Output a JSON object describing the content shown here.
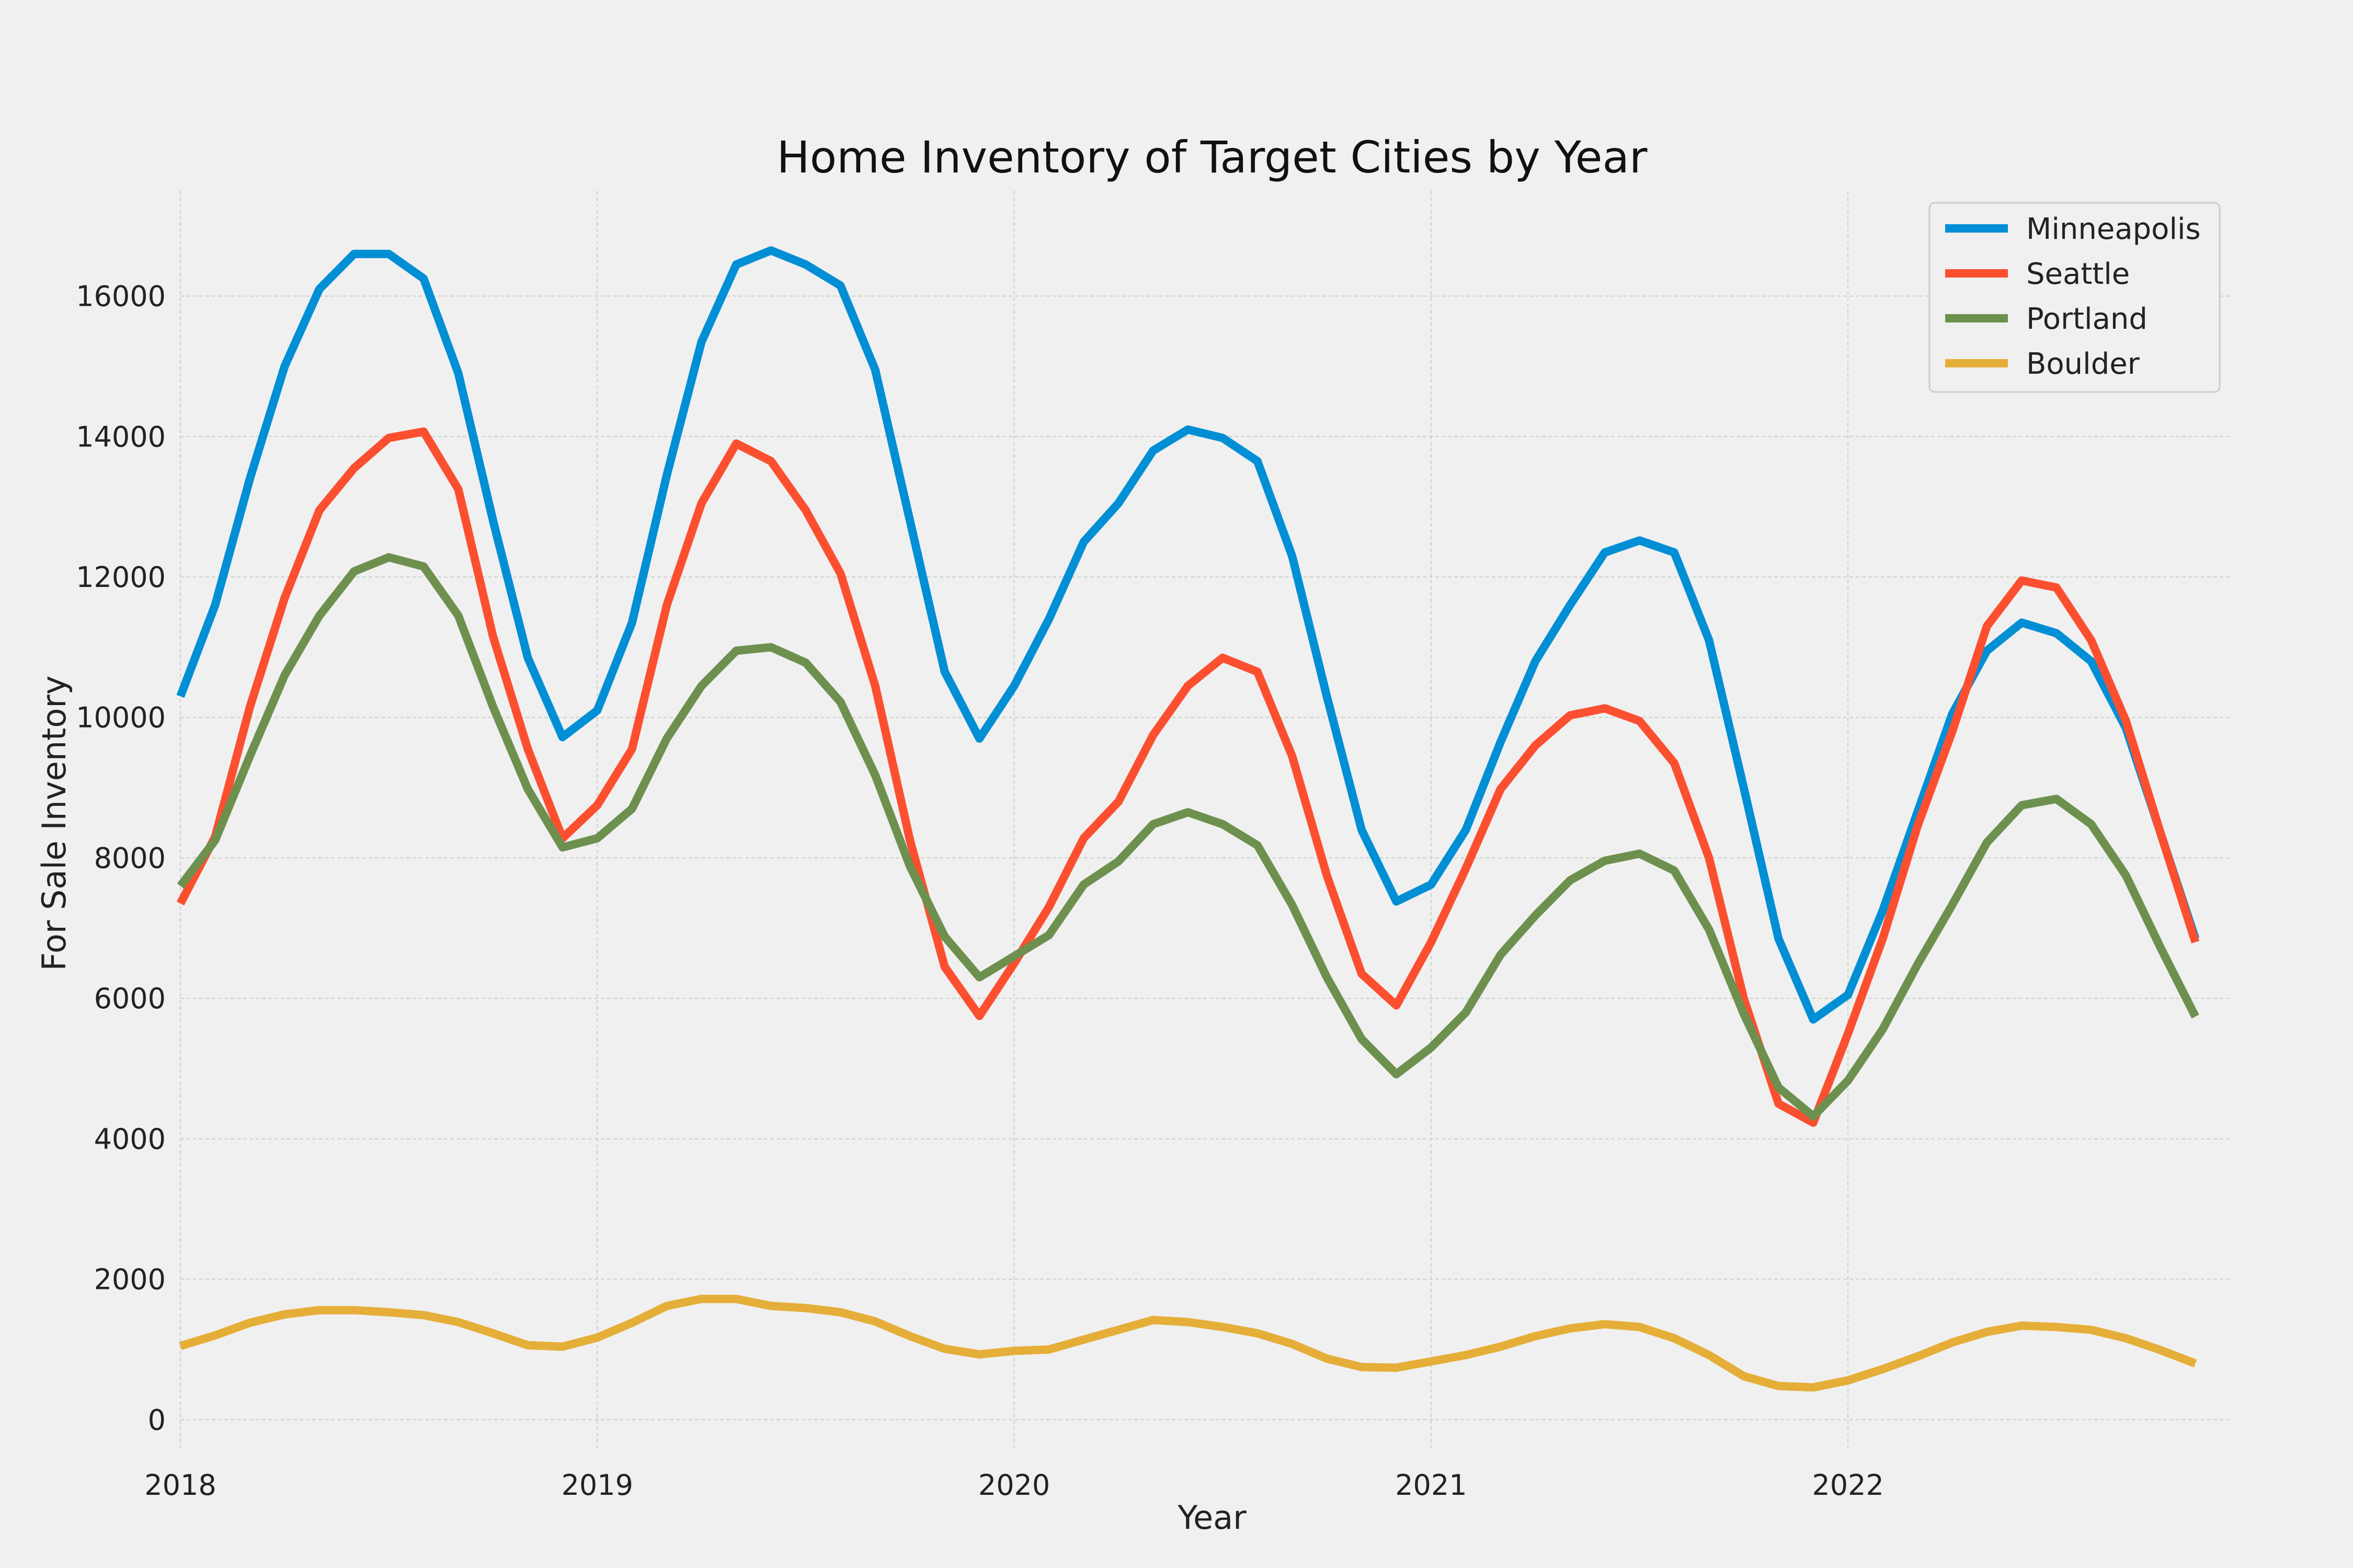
{
  "chart_data": {
    "type": "line",
    "title": "Home Inventory of Target Cities by Year",
    "xlabel": "Year",
    "ylabel": "For Sale Inventory",
    "x_start": "2018-01",
    "x_step": "1 month",
    "xlim": [
      "2018-01",
      "2022-12"
    ],
    "ylim": [
      -400,
      17500
    ],
    "x_ticks": [
      {
        "date": "2018-01",
        "label": "2018"
      },
      {
        "date": "2019-01",
        "label": "2019"
      },
      {
        "date": "2020-01",
        "label": "2020"
      },
      {
        "date": "2021-01",
        "label": "2021"
      },
      {
        "date": "2022-01",
        "label": "2022"
      }
    ],
    "y_ticks": [
      0,
      2000,
      4000,
      6000,
      8000,
      10000,
      12000,
      14000,
      16000
    ],
    "grid": true,
    "legend_position": "top-right",
    "series": [
      {
        "name": "Minneapolis",
        "color": "#008fd5",
        "values": [
          10300,
          11600,
          13400,
          15000,
          16100,
          16600,
          16600,
          16250,
          14900,
          12800,
          10850,
          9720,
          10100,
          11350,
          13450,
          15350,
          16450,
          16650,
          16450,
          16150,
          14950,
          12800,
          10650,
          9700,
          10450,
          11400,
          12500,
          13050,
          13800,
          14100,
          13980,
          13650,
          12300,
          10300,
          8400,
          7380,
          7620,
          8400,
          9650,
          10800,
          11600,
          12350,
          12520,
          12350,
          11100,
          9000,
          6850,
          5700,
          6050,
          7250,
          8650,
          10050,
          10950,
          11350,
          11200,
          10800,
          9850,
          8350,
          6850
        ]
      },
      {
        "name": "Seattle",
        "color": "#fc4f30",
        "values": [
          7350,
          8300,
          10150,
          11700,
          12950,
          13550,
          13980,
          14070,
          13250,
          11150,
          9550,
          8280,
          8750,
          9550,
          11600,
          13050,
          13900,
          13650,
          12950,
          12050,
          10450,
          8250,
          6450,
          5750,
          6500,
          7300,
          8280,
          8800,
          9750,
          10450,
          10850,
          10650,
          9450,
          7750,
          6350,
          5900,
          6800,
          7850,
          8980,
          9600,
          10030,
          10130,
          9950,
          9350,
          8000,
          6000,
          4500,
          4230,
          5500,
          6850,
          8450,
          9800,
          11300,
          11950,
          11850,
          11100,
          9950,
          8350,
          6800
        ]
      },
      {
        "name": "Portland",
        "color": "#6d904f",
        "values": [
          7600,
          8250,
          9450,
          10600,
          11450,
          12080,
          12280,
          12150,
          11450,
          10150,
          8980,
          8150,
          8280,
          8700,
          9700,
          10450,
          10950,
          11000,
          10780,
          10220,
          9180,
          7880,
          6880,
          6300,
          6600,
          6900,
          7620,
          7950,
          8480,
          8650,
          8480,
          8180,
          7330,
          6300,
          5420,
          4920,
          5300,
          5800,
          6620,
          7180,
          7680,
          7960,
          8060,
          7820,
          6980,
          5780,
          4730,
          4320,
          4830,
          5560,
          6480,
          7330,
          8220,
          8750,
          8840,
          8480,
          7750,
          6720,
          5740
        ]
      },
      {
        "name": "Boulder",
        "color": "#e5ae38",
        "values": [
          1050,
          1200,
          1380,
          1500,
          1560,
          1560,
          1530,
          1490,
          1390,
          1230,
          1060,
          1040,
          1170,
          1380,
          1620,
          1720,
          1720,
          1620,
          1590,
          1530,
          1400,
          1190,
          1010,
          930,
          980,
          1000,
          1140,
          1280,
          1420,
          1390,
          1320,
          1230,
          1080,
          870,
          750,
          740,
          830,
          920,
          1040,
          1190,
          1300,
          1360,
          1320,
          1160,
          920,
          620,
          480,
          460,
          560,
          720,
          900,
          1100,
          1250,
          1340,
          1320,
          1280,
          1160,
          990,
          800
        ]
      }
    ]
  }
}
